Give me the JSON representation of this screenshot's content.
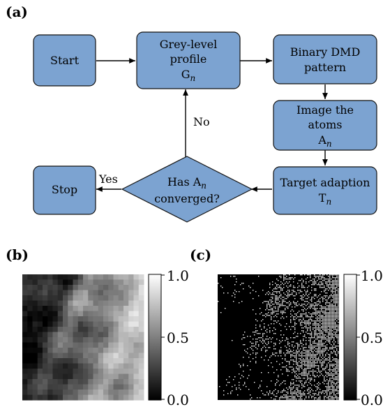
{
  "panels": {
    "a": "(a)",
    "b": "(b)",
    "c": "(c)"
  },
  "flowchart": {
    "start": {
      "lines": [
        "Start"
      ]
    },
    "grey_level": {
      "lines": [
        "Grey-level",
        "profile"
      ],
      "math": "G",
      "sub": "n"
    },
    "binary_dmd": {
      "lines": [
        "Binary DMD",
        "pattern"
      ]
    },
    "image_atoms": {
      "lines": [
        "Image the",
        "atoms"
      ],
      "math": "A",
      "sub": "n"
    },
    "target_adaption": {
      "lines": [
        "Target adaption"
      ],
      "math": "T",
      "sub": "n"
    },
    "decision": {
      "line1_prefix": "Has A",
      "line1_sub": "n",
      "line2": "converged?"
    },
    "stop": {
      "lines": [
        "Stop"
      ]
    },
    "edge_no": "No",
    "edge_yes": "Yes"
  },
  "colorbars": {
    "b": {
      "ticks": [
        "1.0",
        "0.5",
        "0.0"
      ],
      "range": [
        0.0,
        1.0
      ]
    },
    "c": {
      "ticks": [
        "1.0",
        "0.5",
        "0.0"
      ],
      "range": [
        0.0,
        1.0
      ]
    }
  },
  "colors": {
    "node_fill": "#7ca3d1",
    "node_stroke": "#111111"
  },
  "images": {
    "b_description_icon": "grey-level-profile-image",
    "c_description_icon": "binary-dmd-pattern-image"
  }
}
